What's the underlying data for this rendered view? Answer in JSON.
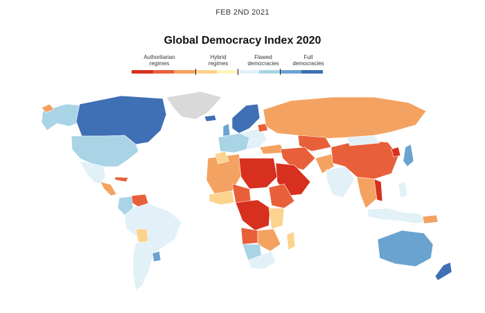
{
  "date": "FEB 2ND 2021",
  "title": "Global Democracy Index 2020",
  "legend": {
    "categories": [
      {
        "label": "Authoritarian regimes"
      },
      {
        "label": "Hybrid regimes"
      },
      {
        "label": "Flawed democracies"
      },
      {
        "label": "Full democracies"
      }
    ],
    "scale_colors": [
      "#d7301f",
      "#e8603a",
      "#f4a261",
      "#fcd38d",
      "#fff3bd",
      "#e2f0f7",
      "#a8d4e6",
      "#6aa3cf",
      "#3f6fb5"
    ]
  },
  "colors": {
    "authoritarian_dark": "#d7301f",
    "authoritarian": "#e8603a",
    "hybrid_orange": "#f4a261",
    "hybrid_yellow": "#fcd38d",
    "flawed_pale": "#e2f0f7",
    "flawed": "#a8d4e6",
    "full_light": "#6aa3cf",
    "full": "#3f6fb5",
    "no_data": "#d9d9d9"
  }
}
